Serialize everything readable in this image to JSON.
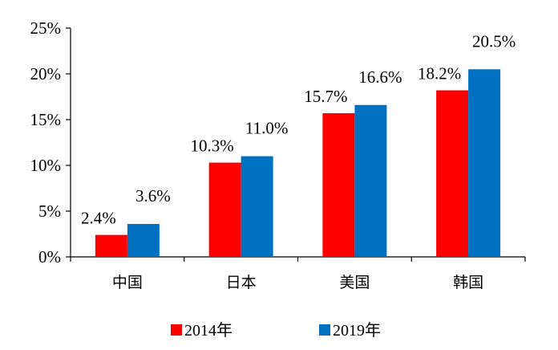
{
  "chart_data": {
    "type": "bar",
    "categories": [
      "中国",
      "日本",
      "美国",
      "韩国"
    ],
    "series": [
      {
        "name": "2014年",
        "values": [
          2.4,
          10.3,
          15.7,
          18.2
        ],
        "labels": [
          "2.4%",
          "10.3%",
          "15.7%",
          "18.2%"
        ],
        "color": "#ff0000"
      },
      {
        "name": "2019年",
        "values": [
          3.6,
          11.0,
          16.6,
          20.5
        ],
        "labels": [
          "3.6%",
          "11.0%",
          "16.6%",
          "20.5%"
        ],
        "color": "#0070c0"
      }
    ],
    "ylim": [
      0,
      25
    ],
    "yticks": [
      0,
      5,
      10,
      15,
      20,
      25
    ],
    "ytick_labels": [
      "0%",
      "5%",
      "10%",
      "15%",
      "20%",
      "25%"
    ],
    "legend_position": "bottom",
    "grid": false
  }
}
